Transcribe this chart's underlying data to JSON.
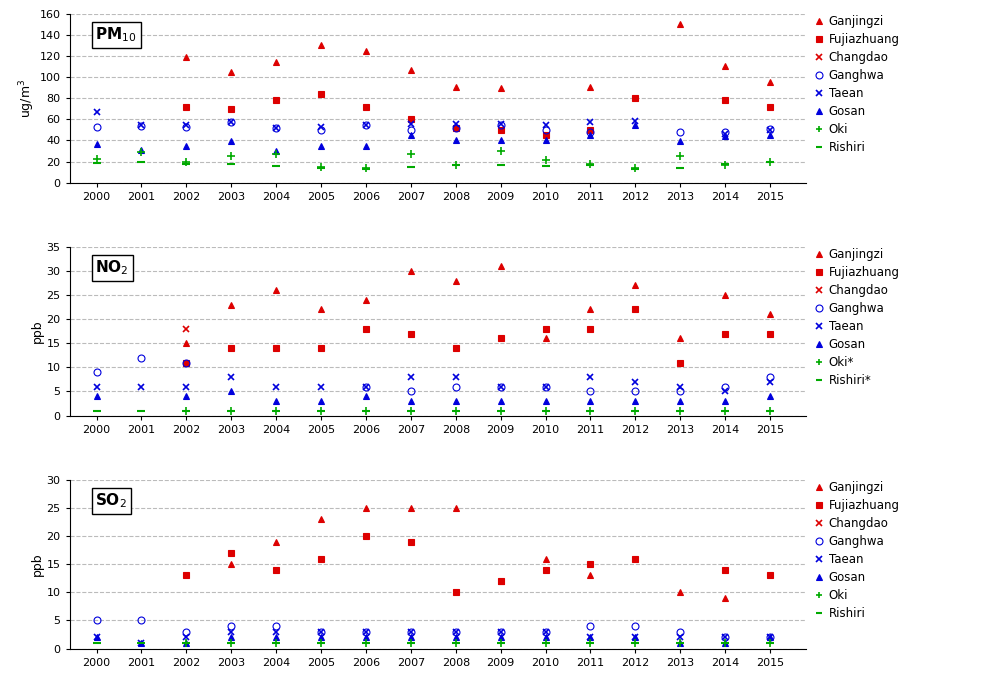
{
  "years": [
    2000,
    2001,
    2002,
    2003,
    2004,
    2005,
    2006,
    2007,
    2008,
    2009,
    2010,
    2011,
    2012,
    2013,
    2014,
    2015
  ],
  "PM10": {
    "Ganjingzi": [
      null,
      null,
      119,
      105,
      114,
      130,
      125,
      107,
      91,
      90,
      null,
      91,
      null,
      150,
      111,
      95
    ],
    "Fujiazhuang": [
      null,
      null,
      72,
      70,
      78,
      84,
      72,
      60,
      52,
      50,
      45,
      50,
      80,
      null,
      78,
      72
    ],
    "Changdao": [
      null,
      null,
      null,
      null,
      null,
      null,
      null,
      null,
      null,
      null,
      null,
      null,
      null,
      null,
      null,
      null
    ],
    "Ganghwa": [
      53,
      54,
      53,
      57,
      52,
      50,
      55,
      50,
      52,
      55,
      50,
      48,
      null,
      48,
      48,
      51
    ],
    "Taean": [
      67,
      55,
      55,
      57,
      52,
      53,
      55,
      56,
      56,
      56,
      55,
      57,
      58,
      null,
      46,
      50
    ],
    "Gosan": [
      37,
      31,
      35,
      39,
      30,
      35,
      35,
      45,
      40,
      40,
      40,
      45,
      55,
      39,
      44,
      45
    ],
    "Oki": [
      22,
      29,
      20,
      25,
      27,
      15,
      14,
      27,
      17,
      30,
      21,
      18,
      14,
      25,
      17,
      20
    ],
    "Rishiri": [
      19,
      20,
      18,
      18,
      16,
      14,
      13,
      15,
      17,
      17,
      16,
      17,
      13,
      14,
      18,
      20
    ]
  },
  "NO2": {
    "Ganjingzi": [
      null,
      null,
      15,
      23,
      26,
      22,
      24,
      30,
      28,
      31,
      16,
      22,
      27,
      16,
      25,
      21
    ],
    "Fujiazhuang": [
      null,
      null,
      11,
      14,
      14,
      14,
      18,
      17,
      14,
      16,
      18,
      18,
      22,
      11,
      17,
      17
    ],
    "Changdao": [
      null,
      null,
      18,
      null,
      null,
      null,
      null,
      null,
      null,
      null,
      null,
      null,
      null,
      null,
      null,
      null
    ],
    "Ganghwa": [
      9,
      12,
      11,
      null,
      null,
      null,
      6,
      5,
      6,
      6,
      6,
      5,
      5,
      5,
      6,
      8
    ],
    "Taean": [
      6,
      6,
      6,
      8,
      6,
      6,
      6,
      8,
      8,
      6,
      6,
      8,
      7,
      6,
      5,
      7
    ],
    "Gosan": [
      4,
      null,
      4,
      5,
      3,
      3,
      4,
      3,
      3,
      3,
      3,
      3,
      3,
      3,
      3,
      4
    ],
    "Oki": [
      null,
      null,
      1,
      1,
      1,
      1,
      1,
      1,
      1,
      1,
      1,
      1,
      1,
      1,
      1,
      1
    ],
    "Rishiri": [
      1,
      1,
      1,
      1,
      1,
      1,
      1,
      1,
      1,
      1,
      1,
      1,
      1,
      1,
      1,
      1
    ]
  },
  "SO2": {
    "Ganjingzi": [
      null,
      null,
      null,
      15,
      19,
      23,
      25,
      25,
      25,
      12,
      16,
      13,
      null,
      10,
      9,
      null
    ],
    "Fujiazhuang": [
      null,
      null,
      13,
      17,
      14,
      16,
      20,
      19,
      10,
      12,
      14,
      15,
      16,
      null,
      14,
      13
    ],
    "Changdao": [
      null,
      null,
      null,
      null,
      null,
      null,
      null,
      null,
      null,
      null,
      null,
      null,
      null,
      null,
      null,
      null
    ],
    "Ganghwa": [
      5,
      5,
      3,
      4,
      4,
      3,
      3,
      3,
      3,
      3,
      3,
      4,
      4,
      3,
      2,
      2
    ],
    "Taean": [
      2,
      1,
      2,
      3,
      3,
      3,
      3,
      3,
      3,
      3,
      3,
      2,
      2,
      2,
      2,
      2
    ],
    "Gosan": [
      2,
      1,
      1,
      2,
      2,
      2,
      2,
      2,
      2,
      2,
      2,
      2,
      2,
      1,
      1,
      2
    ],
    "Oki": [
      null,
      null,
      1,
      1,
      1,
      1,
      1,
      1,
      1,
      1,
      1,
      1,
      1,
      1,
      1,
      1
    ],
    "Rishiri": [
      1,
      1,
      1,
      1,
      1,
      1,
      1,
      1,
      1,
      1,
      1,
      1,
      1,
      1,
      1,
      1
    ]
  },
  "series_order": [
    "Ganjingzi",
    "Fujiazhuang",
    "Changdao",
    "Ganghwa",
    "Taean",
    "Gosan",
    "Oki",
    "Rishiri"
  ],
  "series_styles": {
    "Ganjingzi": {
      "color": "#dd0000",
      "marker": "^",
      "markersize": 5,
      "fillstyle": "full",
      "mew": 0.8
    },
    "Fujiazhuang": {
      "color": "#dd0000",
      "marker": "s",
      "markersize": 5,
      "fillstyle": "full",
      "mew": 0.8
    },
    "Changdao": {
      "color": "#dd0000",
      "marker": "x",
      "markersize": 5,
      "fillstyle": "full",
      "mew": 1.2
    },
    "Ganghwa": {
      "color": "#0000dd",
      "marker": "o",
      "markersize": 5,
      "fillstyle": "none",
      "mew": 0.8
    },
    "Taean": {
      "color": "#0000dd",
      "marker": "x",
      "markersize": 5,
      "fillstyle": "full",
      "mew": 1.2
    },
    "Gosan": {
      "color": "#0000dd",
      "marker": "^",
      "markersize": 5,
      "fillstyle": "full",
      "mew": 0.8
    },
    "Oki": {
      "color": "#00aa00",
      "marker": "+",
      "markersize": 6,
      "fillstyle": "full",
      "mew": 1.2
    },
    "Rishiri": {
      "color": "#00aa00",
      "marker": "_",
      "markersize": 6,
      "fillstyle": "full",
      "mew": 1.5
    }
  },
  "panels": [
    {
      "key": "PM10",
      "label": "PM$_{10}$",
      "ylabel": "ug/m$^3$",
      "ylim": [
        0,
        160
      ],
      "yticks": [
        0,
        20,
        40,
        60,
        80,
        100,
        120,
        140,
        160
      ]
    },
    {
      "key": "NO2",
      "label": "NO$_2$",
      "ylabel": "ppb",
      "ylim": [
        0,
        35
      ],
      "yticks": [
        0,
        5,
        10,
        15,
        20,
        25,
        30,
        35
      ]
    },
    {
      "key": "SO2",
      "label": "SO$_2$",
      "ylabel": "ppb",
      "ylim": [
        0,
        30
      ],
      "yticks": [
        0,
        5,
        10,
        15,
        20,
        25,
        30
      ]
    }
  ],
  "legend_labels": {
    "PM10": [
      "Ganjingzi",
      "Fujiazhuang",
      "Changdao",
      "Ganghwa",
      "Taean",
      "Gosan",
      "Oki",
      "Rishiri"
    ],
    "NO2": [
      "Ganjingzi",
      "Fujiazhuang",
      "Changdao",
      "Ganghwa",
      "Taean",
      "Gosan",
      "Oki*",
      "Rishiri*"
    ],
    "SO2": [
      "Ganjingzi",
      "Fujiazhuang",
      "Changdao",
      "Ganghwa",
      "Taean",
      "Gosan",
      "Oki",
      "Rishiri"
    ]
  }
}
